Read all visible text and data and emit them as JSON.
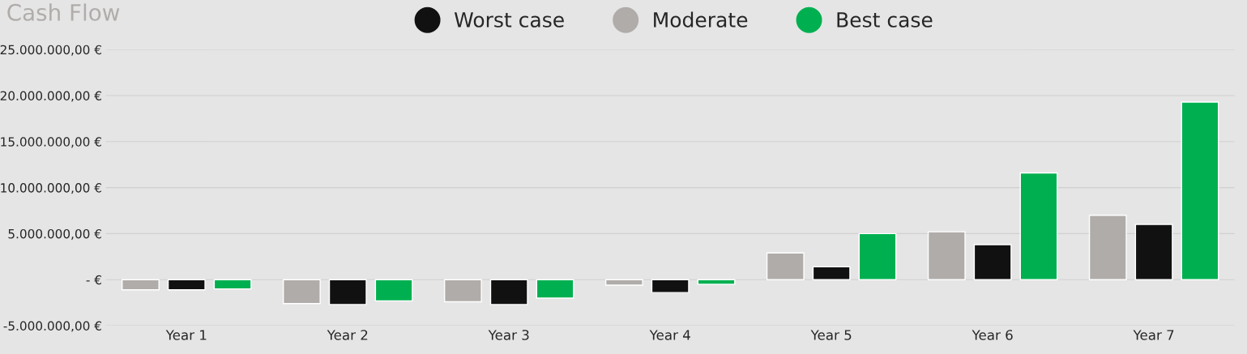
{
  "chart_data": {
    "type": "bar",
    "title": "Cash Flow",
    "categories": [
      "Year 1",
      "Year 2",
      "Year 3",
      "Year 4",
      "Year 5",
      "Year 6",
      "Year 7"
    ],
    "series": [
      {
        "name": "Moderate",
        "color": "#b0acaa",
        "values": [
          -1100000,
          -2600000,
          -2400000,
          -600000,
          2900000,
          5200000,
          7000000
        ]
      },
      {
        "name": "Worst case",
        "color": "#111111",
        "values": [
          -1100000,
          -2700000,
          -2700000,
          -1400000,
          1400000,
          3800000,
          6000000
        ]
      },
      {
        "name": "Best case",
        "color": "#00b050",
        "values": [
          -1000000,
          -2300000,
          -2000000,
          -500000,
          5000000,
          11600000,
          19300000
        ]
      }
    ],
    "ylim": [
      -5000000,
      25000000
    ],
    "yticks": [
      {
        "value": -5000000,
        "label": "-5.000.000,00 €"
      },
      {
        "value": 0,
        "label": "- €"
      },
      {
        "value": 5000000,
        "label": "5.000.000,00 €"
      },
      {
        "value": 10000000,
        "label": "10.000.000,00 €"
      },
      {
        "value": 15000000,
        "label": "15.000.000,00 €"
      },
      {
        "value": 20000000,
        "label": "20.000.000,00 €"
      },
      {
        "value": 25000000,
        "label": "25.000.000,00 €"
      }
    ],
    "grid": "y",
    "legend": "top"
  }
}
